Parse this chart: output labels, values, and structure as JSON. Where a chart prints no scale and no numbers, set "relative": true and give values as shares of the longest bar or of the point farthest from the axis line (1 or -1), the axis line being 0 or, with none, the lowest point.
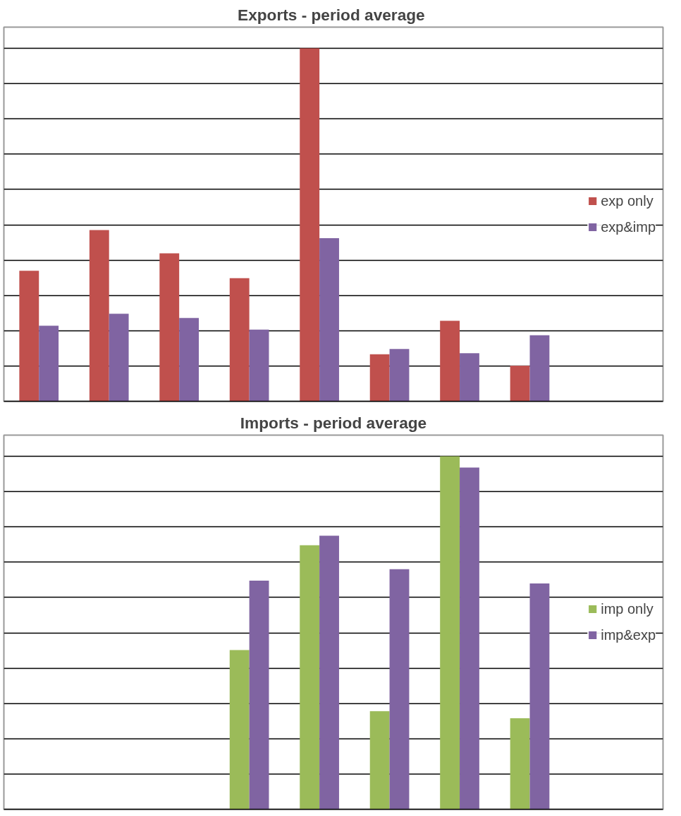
{
  "chart_data": [
    {
      "type": "bar",
      "title": "Exports  - period average",
      "relative": true,
      "grid": "y",
      "legend": "right",
      "categories": [
        null,
        null,
        null,
        null,
        null,
        null,
        null,
        null
      ],
      "series": [
        {
          "name": "exp only",
          "color": "#c0504d",
          "values": [
            0.37,
            0.485,
            0.419,
            0.349,
            1,
            0.133,
            0.228,
            0.101
          ]
        },
        {
          "name": "exp&imp",
          "color": "#8064a2",
          "values": [
            0.214,
            0.248,
            0.236,
            0.203,
            0.462,
            0.148,
            0.136,
            0.187
          ]
        }
      ]
    },
    {
      "type": "bar",
      "title": "Imports - period average",
      "relative": true,
      "grid": "y",
      "legend": "right",
      "categories": [
        null,
        null,
        null,
        null,
        null,
        null,
        null,
        null
      ],
      "series": [
        {
          "name": "imp only",
          "color": "#9bbb59",
          "values": [
            null,
            null,
            null,
            0.451,
            0.748,
            0.278,
            1,
            0.258
          ]
        },
        {
          "name": "imp&exp",
          "color": "#8064a2",
          "values": [
            null,
            null,
            null,
            0.648,
            0.775,
            0.68,
            0.968,
            0.64
          ]
        }
      ]
    }
  ]
}
